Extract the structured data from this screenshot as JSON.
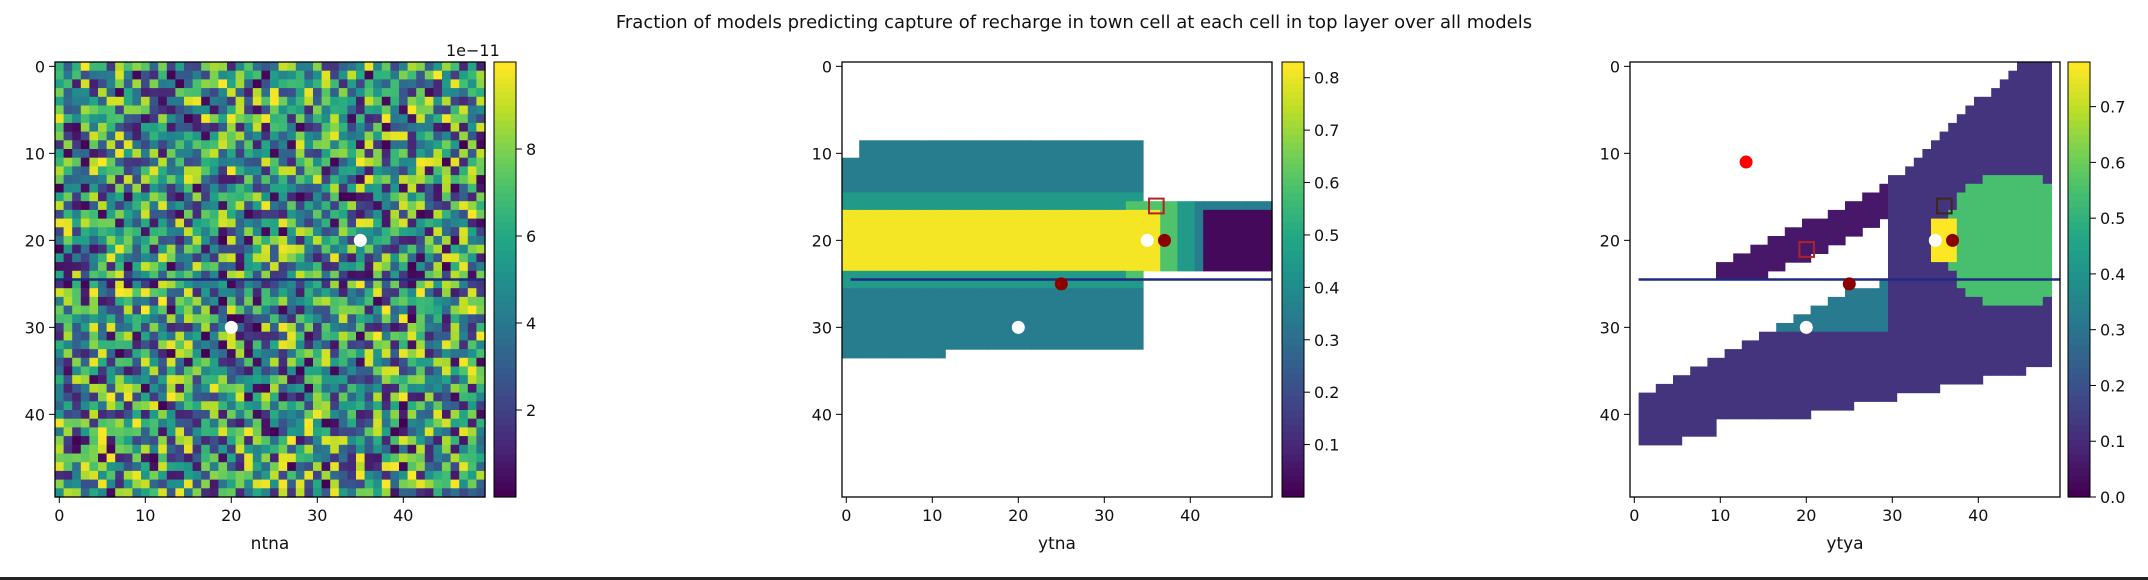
{
  "chart_data": {
    "title": "Fraction of models predicting capture of recharge in town cell at each cell in top layer over all models",
    "panels": [
      {
        "type": "heatmap",
        "xlabel": "ntna",
        "grid_size": [
          50,
          50
        ],
        "pattern": "uniform random noise over entire grid",
        "x_ticks": [
          0,
          10,
          20,
          30,
          40
        ],
        "y_ticks": [
          0,
          10,
          20,
          30,
          40
        ],
        "colorbar": {
          "ticks": [
            2,
            4,
            6,
            8
          ],
          "labels": [
            "2",
            "4",
            "6",
            "8"
          ],
          "range": [
            0,
            10
          ],
          "offset_text": "1e−11",
          "colormap": "viridis"
        },
        "river_row": 25,
        "white_points": [
          [
            35,
            20
          ],
          [
            20,
            30
          ]
        ],
        "darkred_points": [],
        "squares": []
      },
      {
        "type": "heatmap",
        "xlabel": "ytna",
        "grid_size": [
          50,
          50
        ],
        "pattern": "plume",
        "x_ticks": [
          0,
          10,
          20,
          30,
          40
        ],
        "y_ticks": [
          0,
          10,
          20,
          30,
          40
        ],
        "colorbar": {
          "ticks": [
            0.1,
            0.2,
            0.3,
            0.4,
            0.5,
            0.6,
            0.7,
            0.8
          ],
          "labels": [
            "0.1",
            "0.2",
            "0.3",
            "0.4",
            "0.5",
            "0.6",
            "0.7",
            "0.8"
          ],
          "range": [
            0.0,
            0.83
          ],
          "colormap": "viridis"
        },
        "river_row": 25,
        "white_points": [
          [
            35,
            20
          ],
          [
            20,
            30
          ]
        ],
        "darkred_points": [
          [
            37,
            20
          ],
          [
            25,
            25
          ]
        ],
        "squares": [
          [
            36,
            16
          ]
        ],
        "square_color": "#b22222"
      },
      {
        "type": "heatmap",
        "xlabel": "ytya",
        "grid_size": [
          50,
          50
        ],
        "pattern": "multi-zone",
        "x_ticks": [
          0,
          10,
          20,
          30,
          40
        ],
        "y_ticks": [
          0,
          10,
          20,
          30,
          40
        ],
        "colorbar": {
          "ticks": [
            0.0,
            0.1,
            0.2,
            0.3,
            0.4,
            0.5,
            0.6,
            0.7
          ],
          "labels": [
            "0.0",
            "0.1",
            "0.2",
            "0.3",
            "0.4",
            "0.5",
            "0.6",
            "0.7"
          ],
          "range": [
            0.0,
            0.78
          ],
          "colormap": "viridis"
        },
        "river_row": 25,
        "white_points": [
          [
            35,
            20
          ],
          [
            20,
            30
          ]
        ],
        "darkred_points": [
          [
            37,
            20
          ],
          [
            25,
            25
          ]
        ],
        "red_points": [
          [
            13,
            11
          ]
        ],
        "squares": [
          [
            36,
            16
          ],
          [
            20,
            21
          ]
        ],
        "square_colors": [
          "#3a2a1a",
          "#b22222"
        ]
      }
    ]
  },
  "colors": {
    "river": "#1f2a80",
    "dark_red": "#8b0000",
    "red": "#ff0000",
    "white": "#ffffff"
  }
}
